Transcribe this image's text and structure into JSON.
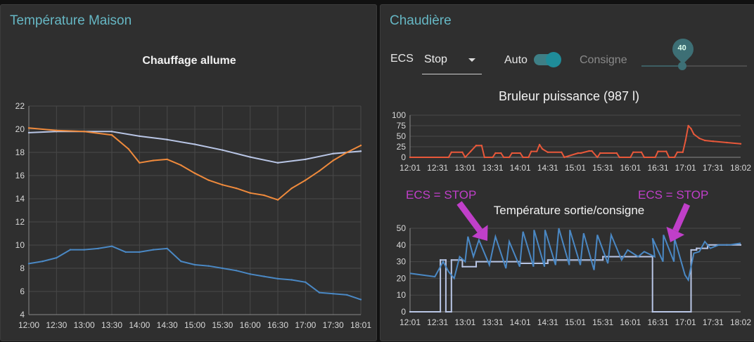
{
  "left_panel": {
    "title": "Température Maison",
    "chart_title": "Chauffage allume"
  },
  "right_panel": {
    "title": "Chaudière",
    "ecs_label": "ECS",
    "ecs_value": "Stop",
    "auto_label": "Auto",
    "auto_on": true,
    "consigne_label": "Consigne",
    "consigne_value": "40",
    "chart1_title": "Bruleur puissance (987 l)",
    "chart2_title": "Température sortie/consigne",
    "annotations": [
      {
        "text": "ECS = STOP",
        "color": "#c03fc9"
      },
      {
        "text": "ECS = STOP",
        "color": "#c03fc9"
      }
    ]
  },
  "colors": {
    "accent": "#66b7c4",
    "orange": "#ef8a3c",
    "lavender": "#b9c6e6",
    "blue": "#4a88c4",
    "red": "#e8583a",
    "magenta": "#c03fc9"
  },
  "chart_data": [
    {
      "type": "line",
      "title": "Chauffage allume",
      "x_ticks": [
        "12:00",
        "12:30",
        "13:00",
        "13:30",
        "14:00",
        "14:30",
        "15:00",
        "15:30",
        "16:00",
        "16:30",
        "17:00",
        "17:30",
        "18:01"
      ],
      "y_ticks": [
        4,
        6,
        8,
        10,
        12,
        14,
        16,
        18,
        20,
        22
      ],
      "ylim": [
        4,
        22
      ],
      "grid": true,
      "series": [
        {
          "color": "#b9c6e6",
          "x": [
            0,
            1,
            2,
            3,
            4,
            5,
            6,
            7,
            8,
            9,
            10,
            11,
            12
          ],
          "values": [
            19.7,
            19.8,
            19.8,
            19.8,
            19.4,
            19.1,
            18.7,
            18.2,
            17.6,
            17.1,
            17.4,
            17.9,
            18.1
          ]
        },
        {
          "color": "#ef8a3c",
          "x": [
            0,
            1,
            2,
            3,
            3.6,
            4,
            4.5,
            5,
            5.5,
            6,
            6.5,
            7,
            7.5,
            8,
            8.5,
            9,
            9.5,
            10,
            10.5,
            11,
            11.5,
            12
          ],
          "values": [
            20.1,
            19.9,
            19.8,
            19.5,
            18.3,
            17.1,
            17.3,
            17.4,
            16.9,
            16.2,
            15.6,
            15.2,
            14.9,
            14.5,
            14.3,
            13.9,
            14.9,
            15.6,
            16.4,
            17.3,
            18.0,
            18.6
          ]
        },
        {
          "color": "#4a88c4",
          "x": [
            0,
            0.5,
            1,
            1.5,
            2,
            2.5,
            3,
            3.5,
            4,
            4.5,
            5,
            5.5,
            6,
            6.5,
            7,
            7.5,
            8,
            8.5,
            9,
            9.5,
            10,
            10.5,
            11,
            11.5,
            12
          ],
          "values": [
            8.4,
            8.6,
            8.9,
            9.6,
            9.6,
            9.7,
            9.9,
            9.4,
            9.4,
            9.6,
            9.7,
            8.6,
            8.3,
            8.2,
            8.0,
            7.8,
            7.5,
            7.3,
            7.1,
            7.0,
            6.8,
            5.9,
            5.8,
            5.7,
            5.3
          ]
        }
      ]
    },
    {
      "type": "line",
      "title": "Bruleur puissance (987 l)",
      "x_ticks": [
        "12:01",
        "12:31",
        "13:01",
        "13:31",
        "14:01",
        "14:31",
        "15:01",
        "15:31",
        "16:01",
        "16:31",
        "17:01",
        "17:31",
        "18:02"
      ],
      "y_ticks": [
        0,
        25,
        50,
        75,
        100
      ],
      "ylim": [
        0,
        100
      ],
      "series": [
        {
          "color": "#e8583a",
          "x": [
            0,
            1.4,
            1.5,
            1.9,
            2.0,
            2.2,
            2.4,
            2.6,
            2.7,
            3.0,
            3.1,
            3.3,
            3.4,
            3.6,
            3.7,
            4.0,
            4.1,
            4.3,
            4.4,
            4.6,
            4.7,
            4.8,
            5.0,
            5.5,
            5.6,
            6.1,
            6.2,
            6.5,
            6.6,
            6.8,
            6.9,
            7.5,
            7.6,
            8.0,
            8.1,
            8.4,
            8.5,
            8.9,
            9.0,
            9.3,
            9.4,
            9.6,
            9.7,
            9.9,
            10.0,
            10.1,
            10.2,
            10.3,
            10.5,
            10.7,
            11.0,
            11.5,
            12.0
          ],
          "values": [
            0,
            0,
            12,
            12,
            0,
            14,
            28,
            28,
            0,
            0,
            10,
            10,
            0,
            0,
            10,
            10,
            0,
            0,
            14,
            14,
            30,
            20,
            12,
            12,
            0,
            10,
            10,
            15,
            15,
            0,
            10,
            10,
            0,
            0,
            12,
            12,
            0,
            0,
            14,
            14,
            0,
            0,
            12,
            12,
            40,
            75,
            68,
            55,
            45,
            40,
            38,
            35,
            32
          ]
        }
      ]
    },
    {
      "type": "line",
      "title": "Température sortie/consigne",
      "x_ticks": [
        "12:01",
        "12:31",
        "13:01",
        "13:31",
        "14:01",
        "14:31",
        "15:01",
        "15:31",
        "16:01",
        "16:31",
        "17:01",
        "17:31",
        "18:02"
      ],
      "y_ticks": [
        0,
        10,
        20,
        30,
        40,
        50
      ],
      "ylim": [
        0,
        50
      ],
      "series": [
        {
          "color": "#b9c6e6",
          "x": [
            0,
            1.1,
            1.1,
            1.3,
            1.3,
            1.5,
            1.5,
            1.9,
            1.9,
            2.4,
            2.4,
            4.0,
            4.0,
            5.0,
            5.0,
            7.0,
            7.0,
            8.8,
            8.8,
            10.2,
            10.2,
            10.4,
            10.4,
            10.8,
            10.8,
            11.5,
            12.0
          ],
          "values": [
            0,
            0,
            31,
            31,
            0,
            0,
            31,
            31,
            27,
            27,
            30,
            30,
            29,
            29,
            31,
            31,
            33,
            33,
            0,
            0,
            37,
            37,
            38,
            38,
            40,
            40,
            40
          ]
        }
      ]
    }
  ]
}
